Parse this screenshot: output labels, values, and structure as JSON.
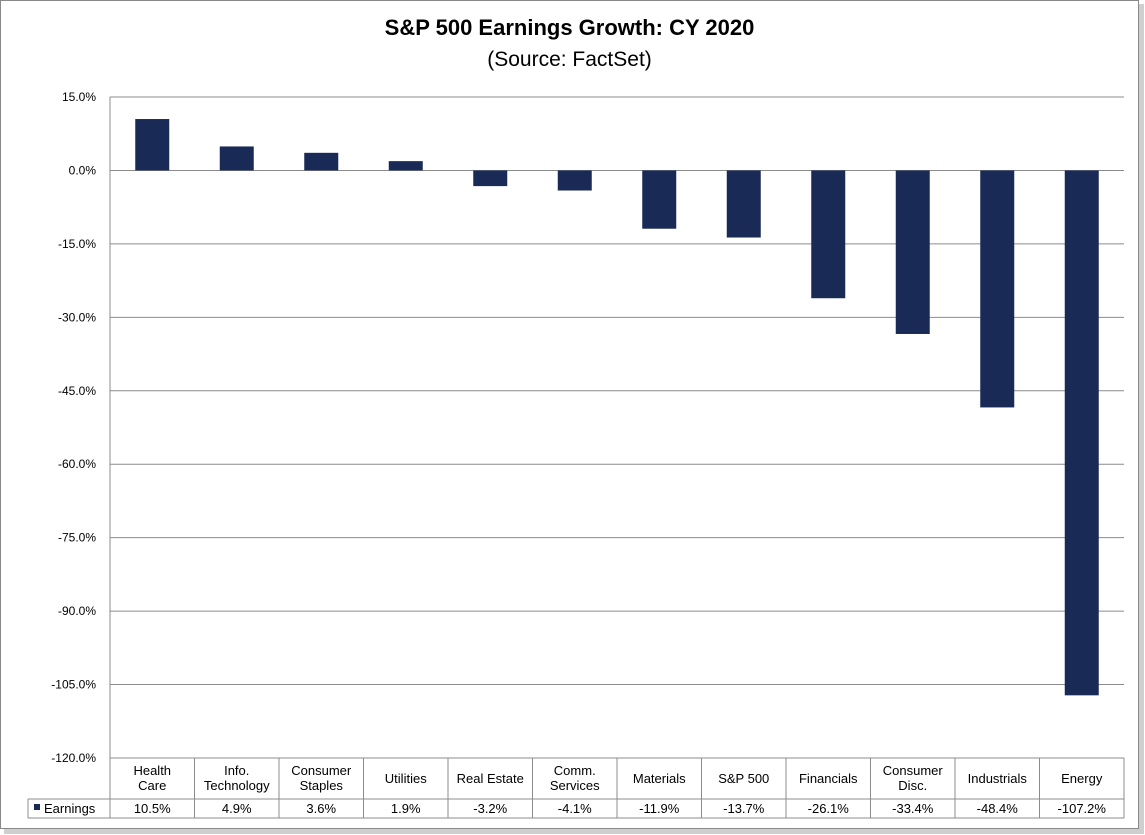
{
  "chart_data": {
    "type": "bar",
    "title": "S&P 500 Earnings Growth: CY 2020",
    "subtitle": "(Source: FactSet)",
    "categories": [
      [
        "Health",
        "Care"
      ],
      [
        "Info.",
        "Technology"
      ],
      [
        "Consumer",
        "Staples"
      ],
      [
        "Utilities"
      ],
      [
        "Real Estate"
      ],
      [
        "Comm.",
        "Services"
      ],
      [
        "Materials"
      ],
      [
        "S&P 500"
      ],
      [
        "Financials"
      ],
      [
        "Consumer",
        "Disc."
      ],
      [
        "Industrials"
      ],
      [
        "Energy"
      ]
    ],
    "series": [
      {
        "name": "Earnings",
        "values": [
          10.5,
          4.9,
          3.6,
          1.9,
          -3.2,
          -4.1,
          -11.9,
          -13.7,
          -26.1,
          -33.4,
          -48.4,
          -107.2
        ],
        "labels": [
          "10.5%",
          "4.9%",
          "3.6%",
          "1.9%",
          "-3.2%",
          "-4.1%",
          "-11.9%",
          "-13.7%",
          "-26.1%",
          "-33.4%",
          "-48.4%",
          "-107.2%"
        ],
        "color": "#1a2a56"
      }
    ],
    "ylim": [
      -120,
      15
    ],
    "yticks": [
      15,
      0,
      -15,
      -30,
      -45,
      -60,
      -75,
      -90,
      -105,
      -120
    ],
    "ytick_labels": [
      "15.0%",
      "0.0%",
      "-15.0%",
      "-30.0%",
      "-45.0%",
      "-60.0%",
      "-75.0%",
      "-90.0%",
      "-105.0%",
      "-120.0%"
    ],
    "grid": true,
    "data_table": true,
    "xlabel": "",
    "ylabel": ""
  }
}
